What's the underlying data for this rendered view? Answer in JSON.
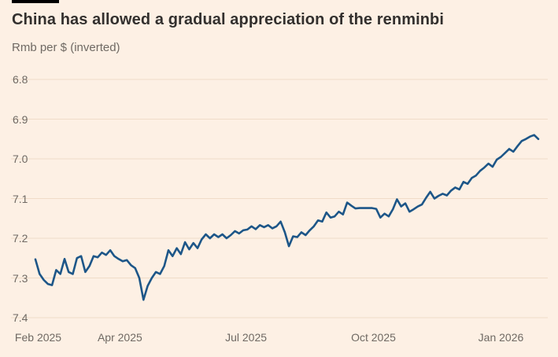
{
  "header": {
    "title": "China has allowed a gradual appreciation of the renminbi",
    "subtitle": "Rmb per $ (inverted)"
  },
  "colors": {
    "background": "#fdf0e4",
    "top_rule": "#000000",
    "title_text": "#33302e",
    "subtitle_text": "#6f6963",
    "tick_text": "#6f6963",
    "gridline": "#f0dcc8",
    "series_line": "#1d5688"
  },
  "chart_data": {
    "type": "line",
    "title": "China has allowed a gradual appreciation of the renminbi",
    "unit_label": "Rmb per $ (inverted)",
    "grid": true,
    "legend": "none",
    "y_axis": {
      "label": "Rmb per $",
      "inverted": true,
      "range": [
        6.8,
        7.4
      ],
      "ticks": [
        6.8,
        6.9,
        7.0,
        7.1,
        7.2,
        7.3,
        7.4
      ],
      "tick_format_decimals": 1
    },
    "x_axis": {
      "ticks": [
        {
          "label": "Feb 2025",
          "date": "2025-02-01"
        },
        {
          "label": "Apr 2025",
          "date": "2025-04-01"
        },
        {
          "label": "Jul 2025",
          "date": "2025-07-01"
        },
        {
          "label": "Oct 2025",
          "date": "2025-10-01"
        },
        {
          "label": "Jan 2026",
          "date": "2026-01-01"
        }
      ]
    },
    "series": [
      {
        "name": "Rmb per $",
        "dates": [
          "2025-01-30",
          "2025-02-02",
          "2025-02-05",
          "2025-02-08",
          "2025-02-11",
          "2025-02-14",
          "2025-02-17",
          "2025-02-20",
          "2025-02-23",
          "2025-02-26",
          "2025-03-01",
          "2025-03-04",
          "2025-03-07",
          "2025-03-10",
          "2025-03-13",
          "2025-03-16",
          "2025-03-19",
          "2025-03-22",
          "2025-03-25",
          "2025-03-28",
          "2025-03-31",
          "2025-04-03",
          "2025-04-06",
          "2025-04-09",
          "2025-04-12",
          "2025-04-15",
          "2025-04-18",
          "2025-04-21",
          "2025-04-24",
          "2025-04-27",
          "2025-04-30",
          "2025-05-03",
          "2025-05-06",
          "2025-05-09",
          "2025-05-12",
          "2025-05-15",
          "2025-05-18",
          "2025-05-21",
          "2025-05-24",
          "2025-05-27",
          "2025-05-30",
          "2025-06-02",
          "2025-06-05",
          "2025-06-08",
          "2025-06-11",
          "2025-06-14",
          "2025-06-17",
          "2025-06-20",
          "2025-06-23",
          "2025-06-26",
          "2025-06-29",
          "2025-07-02",
          "2025-07-05",
          "2025-07-08",
          "2025-07-11",
          "2025-07-14",
          "2025-07-17",
          "2025-07-20",
          "2025-07-23",
          "2025-07-26",
          "2025-07-29",
          "2025-08-01",
          "2025-08-04",
          "2025-08-07",
          "2025-08-10",
          "2025-08-13",
          "2025-08-16",
          "2025-08-19",
          "2025-08-22",
          "2025-08-25",
          "2025-08-28",
          "2025-08-31",
          "2025-09-03",
          "2025-09-06",
          "2025-09-09",
          "2025-09-12",
          "2025-09-15",
          "2025-09-18",
          "2025-09-21",
          "2025-09-24",
          "2025-09-27",
          "2025-09-30",
          "2025-10-03",
          "2025-10-06",
          "2025-10-09",
          "2025-10-12",
          "2025-10-15",
          "2025-10-18",
          "2025-10-21",
          "2025-10-24",
          "2025-10-27",
          "2025-10-30",
          "2025-11-02",
          "2025-11-05",
          "2025-11-08",
          "2025-11-11",
          "2025-11-14",
          "2025-11-17",
          "2025-11-20",
          "2025-11-23",
          "2025-11-26",
          "2025-11-29",
          "2025-12-02",
          "2025-12-05",
          "2025-12-08",
          "2025-12-11",
          "2025-12-14",
          "2025-12-17",
          "2025-12-20",
          "2025-12-23",
          "2025-12-26",
          "2025-12-29",
          "2026-01-01",
          "2026-01-04",
          "2026-01-07",
          "2026-01-10",
          "2026-01-13",
          "2026-01-16",
          "2026-01-19",
          "2026-01-22",
          "2026-01-25",
          "2026-01-28"
        ],
        "values": [
          7.253,
          7.29,
          7.305,
          7.315,
          7.318,
          7.28,
          7.29,
          7.252,
          7.285,
          7.29,
          7.25,
          7.245,
          7.285,
          7.27,
          7.245,
          7.248,
          7.236,
          7.242,
          7.23,
          7.245,
          7.252,
          7.258,
          7.255,
          7.268,
          7.275,
          7.3,
          7.355,
          7.32,
          7.3,
          7.285,
          7.29,
          7.27,
          7.23,
          7.245,
          7.225,
          7.24,
          7.21,
          7.228,
          7.212,
          7.225,
          7.203,
          7.19,
          7.2,
          7.19,
          7.197,
          7.19,
          7.2,
          7.192,
          7.182,
          7.188,
          7.18,
          7.178,
          7.17,
          7.177,
          7.167,
          7.172,
          7.167,
          7.175,
          7.17,
          7.158,
          7.185,
          7.22,
          7.195,
          7.197,
          7.185,
          7.192,
          7.18,
          7.17,
          7.155,
          7.158,
          7.135,
          7.148,
          7.145,
          7.133,
          7.14,
          7.11,
          7.118,
          7.125,
          7.124,
          7.124,
          7.124,
          7.124,
          7.126,
          7.148,
          7.138,
          7.145,
          7.127,
          7.102,
          7.12,
          7.112,
          7.133,
          7.127,
          7.12,
          7.115,
          7.098,
          7.083,
          7.1,
          7.093,
          7.088,
          7.092,
          7.08,
          7.072,
          7.077,
          7.058,
          7.063,
          7.048,
          7.042,
          7.03,
          7.022,
          7.012,
          7.02,
          7.002,
          6.995,
          6.985,
          6.975,
          6.982,
          6.968,
          6.955,
          6.95,
          6.944,
          6.94,
          6.95
        ]
      }
    ]
  }
}
